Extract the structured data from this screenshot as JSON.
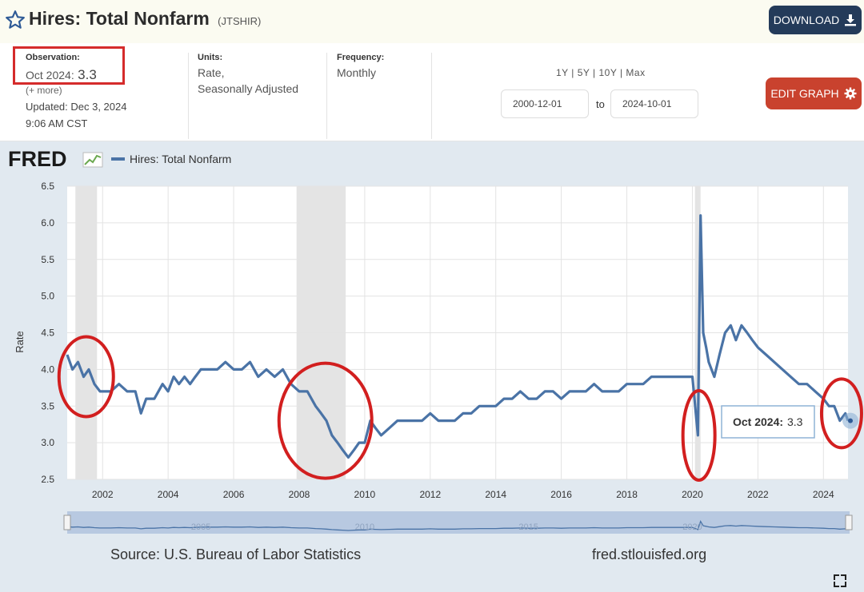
{
  "header": {
    "title": "Hires: Total Nonfarm",
    "series_code": "(JTSHIR)",
    "download_label": "DOWNLOAD"
  },
  "info": {
    "observation_label": "Observation:",
    "observation_period": "Oct 2024:",
    "observation_value": "3.3",
    "more_link": "(+ more)",
    "updated": "Updated: Dec 3, 2024",
    "updated_time": "9:06 AM CST",
    "units_label": "Units:",
    "units_line1": "Rate,",
    "units_line2": "Seasonally Adjusted",
    "frequency_label": "Frequency:",
    "frequency_value": "Monthly",
    "range_links": "1Y | 5Y | 10Y | Max",
    "start_date": "2000-12-01",
    "to_label": "to",
    "end_date": "2024-10-01",
    "edit_label": "EDIT GRAPH"
  },
  "colors": {
    "line": "#4a73a6",
    "recession": "#e4e4e4",
    "annotation": "#d21f1f",
    "brand": "#1a1a1a"
  },
  "footer": {
    "brand": "FRED",
    "source": "Source: U.S. Bureau of Labor Statistics",
    "site": "fred.stlouisfed.org",
    "navigator_ticks": [
      "2005",
      "2010",
      "2015",
      "2020"
    ]
  },
  "tooltip": {
    "label": "Oct 2024:",
    "value": "3.3"
  },
  "chart_data": {
    "type": "line",
    "title": "",
    "xlabel": "",
    "ylabel": "Rate",
    "xlim": [
      2000.92,
      2024.75
    ],
    "ylim": [
      2.5,
      6.5
    ],
    "yticks": [
      2.5,
      3.0,
      3.5,
      4.0,
      4.5,
      5.0,
      5.5,
      6.0,
      6.5
    ],
    "xticks": [
      2002,
      2004,
      2006,
      2008,
      2010,
      2012,
      2014,
      2016,
      2018,
      2020,
      2022,
      2024
    ],
    "grid": true,
    "legend_position": "top-left",
    "recessions": [
      [
        2001.17,
        2001.83
      ],
      [
        2007.92,
        2009.42
      ],
      [
        2020.08,
        2020.25
      ]
    ],
    "annotated_periods": [
      2001.5,
      2008.8,
      2020.2,
      2024.7
    ],
    "series": [
      {
        "name": "Hires: Total Nonfarm",
        "x": [
          2000.92,
          2001.08,
          2001.25,
          2001.42,
          2001.58,
          2001.75,
          2001.92,
          2002.08,
          2002.25,
          2002.5,
          2002.75,
          2003.0,
          2003.17,
          2003.33,
          2003.58,
          2003.83,
          2004.0,
          2004.17,
          2004.33,
          2004.5,
          2004.67,
          2004.83,
          2005.0,
          2005.25,
          2005.5,
          2005.75,
          2006.0,
          2006.25,
          2006.5,
          2006.75,
          2007.0,
          2007.25,
          2007.5,
          2007.75,
          2008.0,
          2008.25,
          2008.5,
          2008.67,
          2008.83,
          2009.0,
          2009.17,
          2009.33,
          2009.5,
          2009.67,
          2009.83,
          2010.0,
          2010.17,
          2010.33,
          2010.5,
          2010.75,
          2011.0,
          2011.25,
          2011.5,
          2011.75,
          2012.0,
          2012.25,
          2012.5,
          2012.75,
          2013.0,
          2013.25,
          2013.5,
          2013.75,
          2014.0,
          2014.25,
          2014.5,
          2014.75,
          2015.0,
          2015.25,
          2015.5,
          2015.75,
          2016.0,
          2016.25,
          2016.5,
          2016.75,
          2017.0,
          2017.25,
          2017.5,
          2017.75,
          2018.0,
          2018.25,
          2018.5,
          2018.75,
          2019.0,
          2019.25,
          2019.5,
          2019.75,
          2020.0,
          2020.17,
          2020.25,
          2020.33,
          2020.42,
          2020.5,
          2020.67,
          2020.83,
          2021.0,
          2021.17,
          2021.33,
          2021.5,
          2021.67,
          2021.83,
          2022.0,
          2022.25,
          2022.5,
          2022.75,
          2023.0,
          2023.25,
          2023.5,
          2023.75,
          2024.0,
          2024.17,
          2024.33,
          2024.5,
          2024.67,
          2024.75
        ],
        "values": [
          4.2,
          4.0,
          4.1,
          3.9,
          4.0,
          3.8,
          3.7,
          3.7,
          3.7,
          3.8,
          3.7,
          3.7,
          3.4,
          3.6,
          3.6,
          3.8,
          3.7,
          3.9,
          3.8,
          3.9,
          3.8,
          3.9,
          4.0,
          4.0,
          4.0,
          4.1,
          4.0,
          4.0,
          4.1,
          3.9,
          4.0,
          3.9,
          4.0,
          3.8,
          3.7,
          3.7,
          3.5,
          3.4,
          3.3,
          3.1,
          3.0,
          2.9,
          2.8,
          2.9,
          3.0,
          3.0,
          3.3,
          3.2,
          3.1,
          3.2,
          3.3,
          3.3,
          3.3,
          3.3,
          3.4,
          3.3,
          3.3,
          3.3,
          3.4,
          3.4,
          3.5,
          3.5,
          3.5,
          3.6,
          3.6,
          3.7,
          3.6,
          3.6,
          3.7,
          3.7,
          3.6,
          3.7,
          3.7,
          3.7,
          3.8,
          3.7,
          3.7,
          3.7,
          3.8,
          3.8,
          3.8,
          3.9,
          3.9,
          3.9,
          3.9,
          3.9,
          3.9,
          3.1,
          6.1,
          4.5,
          4.3,
          4.1,
          3.9,
          4.2,
          4.5,
          4.6,
          4.4,
          4.6,
          4.5,
          4.4,
          4.3,
          4.2,
          4.1,
          4.0,
          3.9,
          3.8,
          3.8,
          3.7,
          3.6,
          3.5,
          3.5,
          3.3,
          3.4,
          3.3
        ]
      }
    ]
  }
}
